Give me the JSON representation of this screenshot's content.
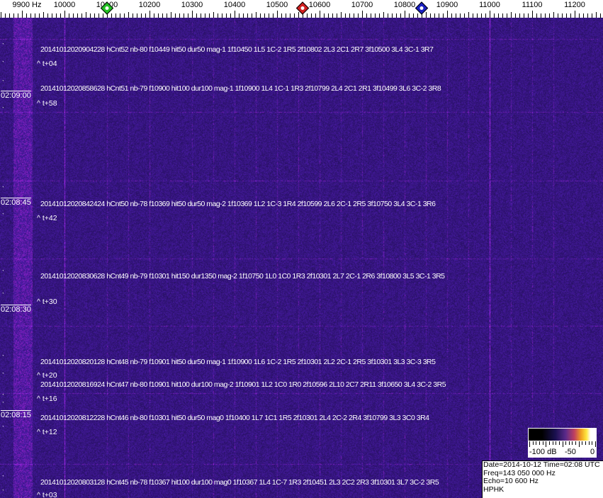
{
  "axis": {
    "labels": [
      {
        "text": "9900 Hz",
        "hz": 9900
      },
      {
        "text": "10000",
        "hz": 10000
      },
      {
        "text": "10100",
        "hz": 10100
      },
      {
        "text": "10200",
        "hz": 10200
      },
      {
        "text": "10300",
        "hz": 10300
      },
      {
        "text": "10400",
        "hz": 10400
      },
      {
        "text": "10500",
        "hz": 10500
      },
      {
        "text": "10600",
        "hz": 10600
      },
      {
        "text": "10700",
        "hz": 10700
      },
      {
        "text": "10800",
        "hz": 10800
      },
      {
        "text": "10900",
        "hz": 10900
      },
      {
        "text": "11000",
        "hz": 11000
      },
      {
        "text": "11100",
        "hz": 11100
      },
      {
        "text": "11200",
        "hz": 11200
      }
    ],
    "markers": [
      {
        "name": "green-marker",
        "hz": 10100,
        "color": "#22c022"
      },
      {
        "name": "red-marker",
        "hz": 10560,
        "color": "#d02020"
      },
      {
        "name": "blue-marker",
        "hz": 10840,
        "color": "#1a20c0"
      }
    ]
  },
  "time_labels": [
    "02:09:00",
    "02:08:45",
    "02:08:30",
    "02:08:15"
  ],
  "detections": [
    {
      "text": "20141012020904228 hCnt52 nb-80 f10449 hit50 dur50 mag-1 1f10450 1L5 1C-2 1R5 2f10802 2L3 2C1 2R7 3f10500 3L4 3C-1 3R7",
      "offset": "^ t+04"
    },
    {
      "text": "20141012020858628 hCnt51 nb-79 f10900 hit100 dur100 mag-1 1f10900 1L4 1C-1 1R3 2f10799 2L4 2C1 2R1 3f10499 3L6 3C-2 3R8",
      "offset": "^ t+58"
    },
    {
      "text": "20141012020842424 hCnt50 nb-78 f10369 hit50 dur50 mag-2 1f10369 1L2 1C-3 1R4 2f10599 2L6 2C-1 2R5 3f10750 3L4 3C-1 3R6",
      "offset": "^ t+42"
    },
    {
      "text": "20141012020830628 hCnt49 nb-79 f10301 hit150 dur1350 mag-2 1f10750 1L0 1C0 1R3 2f10301 2L7 2C-1 2R6 3f10800 3L5 3C-1 3R5",
      "offset": "^ t+30"
    },
    {
      "text": "20141012020820128 hCnt48 nb-79 f10901 hit50 dur50 mag-1 1f10900 1L6 1C-2 1R5 2f10301 2L2 2C-1 2R5 3f10301 3L3 3C-3 3R5",
      "offset": "^ t+20"
    },
    {
      "text": "20141012020816924 hCnt47 nb-80 f10901 hit100 dur100 mag-2 1f10901 1L2 1C0 1R0 2f10596 2L10 2C7 2R11 3f10650 3L4 3C-2 3R5",
      "offset": "^ t+16"
    },
    {
      "text": "20141012020812228 hCnt46 nb-80 f10301 hit50 dur50 mag0 1f10400 1L7 1C1 1R5 2f10301 2L4 2C-2 2R4 3f10799 3L3 3C0 3R4",
      "offset": "^ t+12"
    },
    {
      "text": "20141012020803128 hCnt45 nb-78 f10367 hit100 dur100 mag0 1f10367 1L4 1C-7 1R3 2f10451 2L3 2C2 2R3 3f10301 3L7 3C-2 3R5",
      "offset": "^ t+03"
    }
  ],
  "colorbar": {
    "labels": [
      "-100 dB",
      "-50",
      "0"
    ]
  },
  "info": {
    "date_time": "Date=2014-10-12 Time=02:08 UTC",
    "freq": "Freq=143 050 000 Hz",
    "echo": "Echo=10 600 Hz",
    "station": "HPHK"
  }
}
